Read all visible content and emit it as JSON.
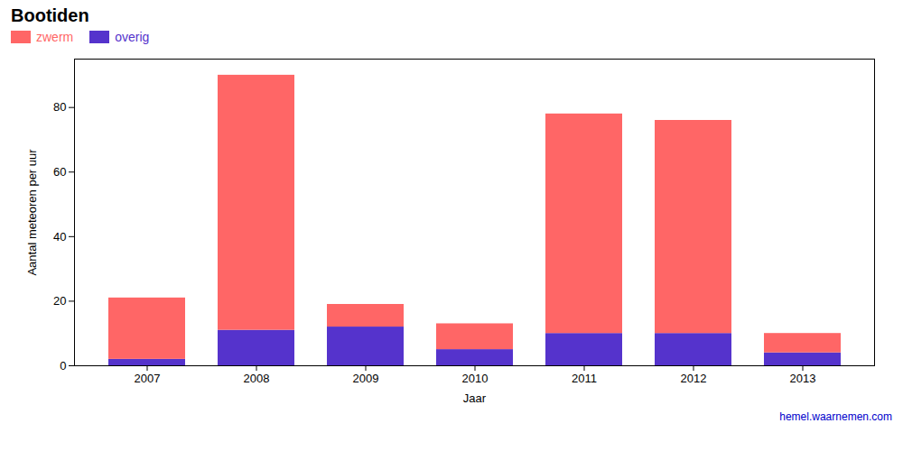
{
  "chart_data": {
    "type": "bar",
    "stacked": true,
    "title": "Bootiden",
    "xlabel": "Jaar",
    "ylabel": "Aantal meteoren per uur",
    "categories": [
      "2007",
      "2008",
      "2009",
      "2010",
      "2011",
      "2012",
      "2013"
    ],
    "series": [
      {
        "name": "overig",
        "color": "#5533CC",
        "values": [
          2,
          11,
          12,
          5,
          10,
          10,
          4
        ]
      },
      {
        "name": "zwerm",
        "color": "#FF6666",
        "values": [
          19,
          79,
          7,
          8,
          68,
          66,
          6
        ]
      }
    ],
    "ylim": [
      0,
      95
    ],
    "yticks": [
      0,
      20,
      40,
      60,
      80
    ],
    "grid": false,
    "legend": "upper left",
    "annotations": [
      {
        "text": "hemel.waarnemen.com",
        "color": "#0000CC"
      }
    ]
  }
}
